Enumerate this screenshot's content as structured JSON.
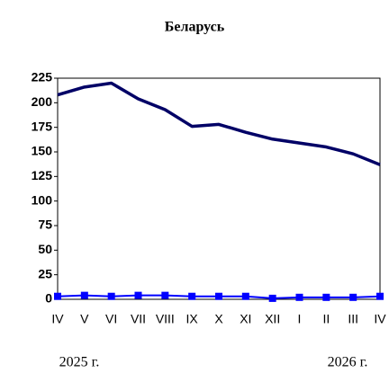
{
  "chart_data": {
    "type": "line",
    "title": "Беларусь",
    "categories": [
      "IV",
      "V",
      "VI",
      "VII",
      "VIII",
      "IX",
      "X",
      "XI",
      "XII",
      "I",
      "II",
      "III",
      "IV"
    ],
    "series": [
      {
        "color": "#000066",
        "marker": false,
        "values": [
          208,
          216,
          220,
          204,
          193,
          176,
          178,
          170,
          163,
          159,
          155,
          148,
          137
        ]
      },
      {
        "color": "#0000ff",
        "marker": true,
        "values": [
          3,
          4,
          3,
          4,
          4,
          3,
          3,
          3,
          1,
          2,
          2,
          2,
          3
        ]
      }
    ],
    "ylim": [
      0,
      225
    ],
    "yticks": [
      0,
      25,
      50,
      75,
      100,
      125,
      150,
      175,
      200,
      225
    ],
    "annotations": [
      "2025 г.",
      "2026 г."
    ]
  }
}
